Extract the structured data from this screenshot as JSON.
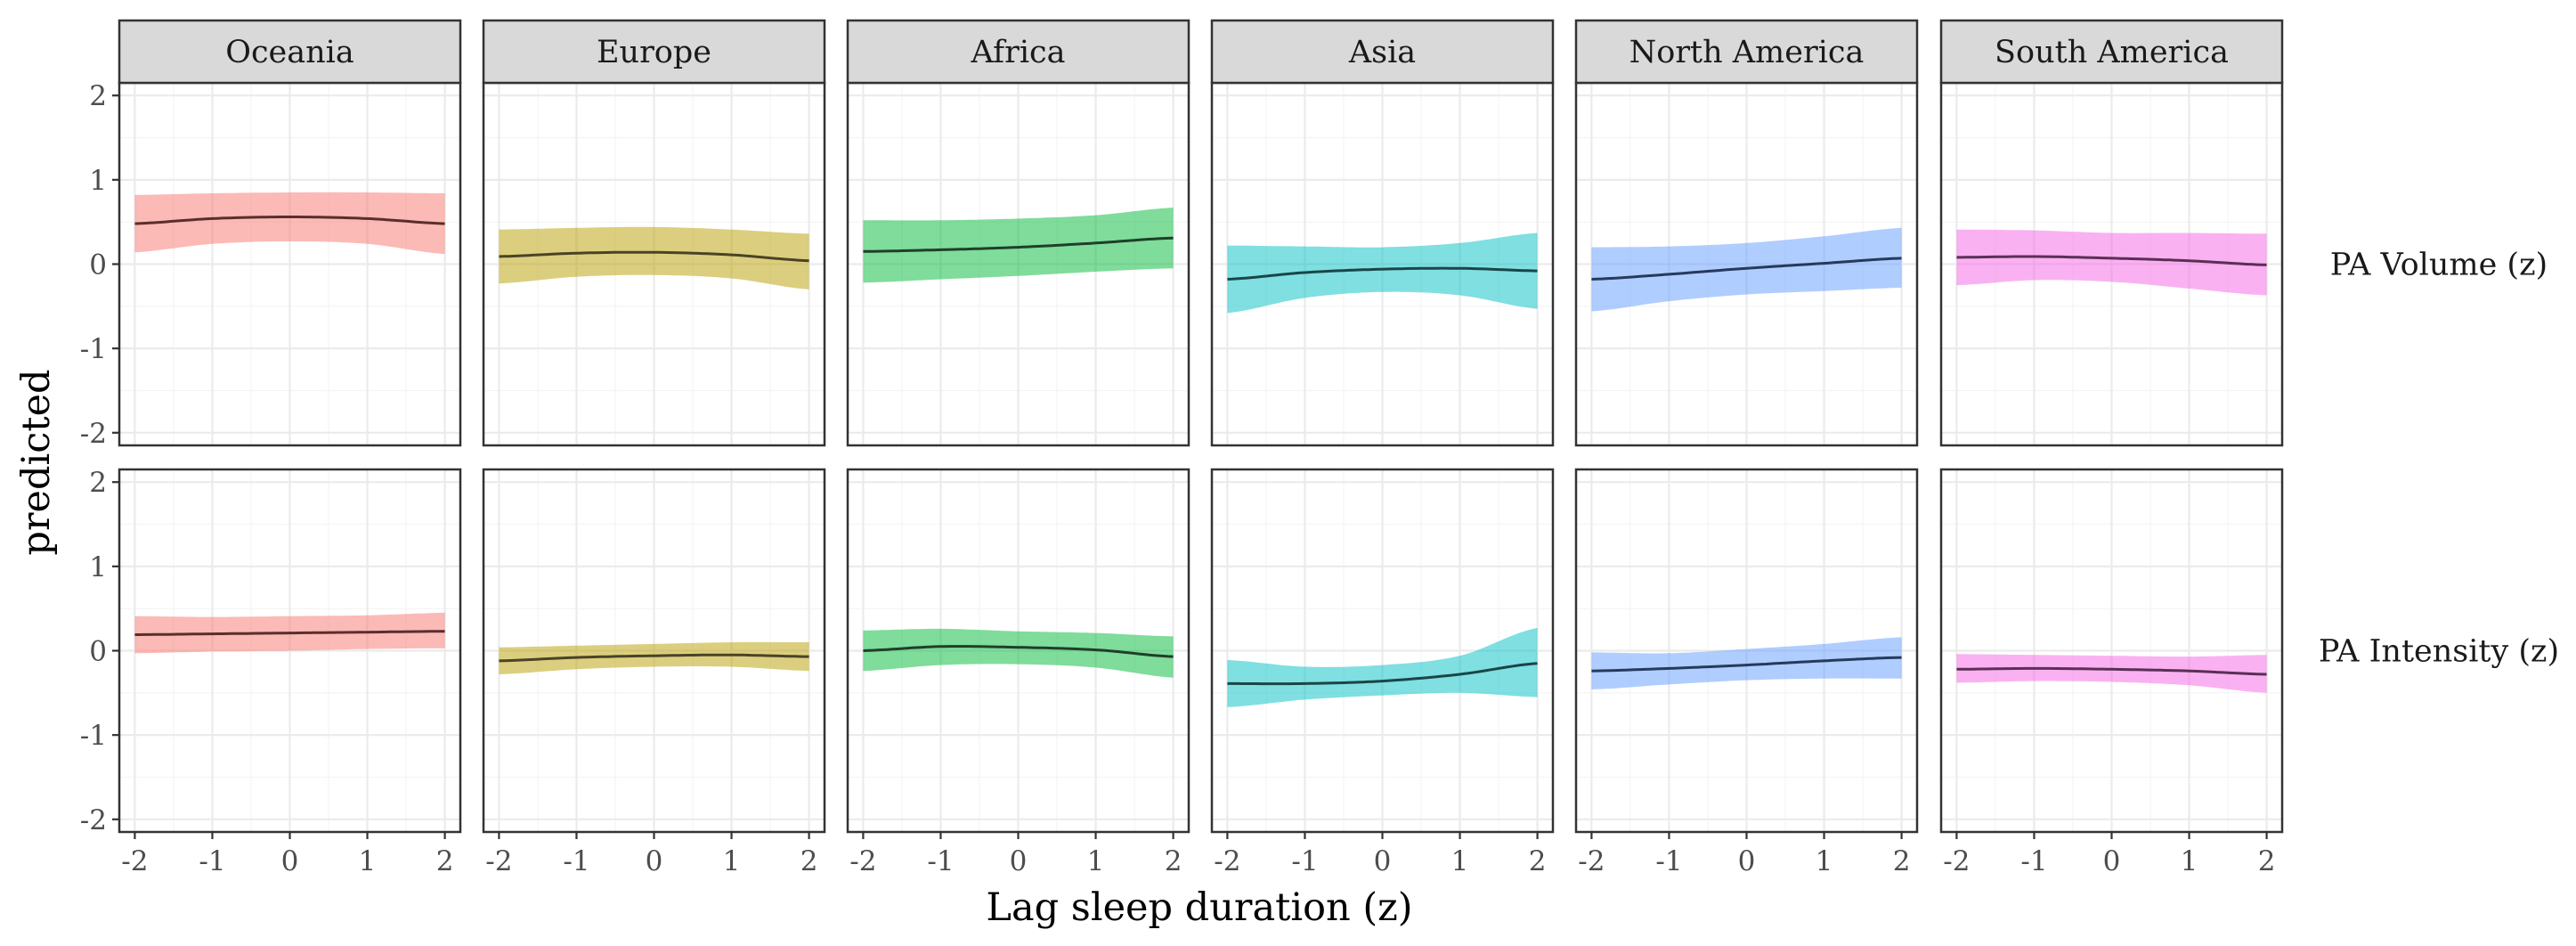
{
  "chart_data": {
    "type": "line",
    "xlabel": "Lag sleep duration (z)",
    "ylabel": "predicted",
    "xlim": [
      -2.2,
      2.2
    ],
    "ylim": [
      -2.15,
      2.15
    ],
    "x_ticks": [
      -2,
      -1,
      0,
      1,
      2
    ],
    "x_tick_labels": [
      "-2",
      "-1",
      "0",
      "1",
      "2"
    ],
    "y_ticks": [
      -2,
      -1,
      0,
      1,
      2
    ],
    "y_tick_labels": [
      "-2",
      "-1",
      "0",
      "1",
      "2"
    ],
    "grid": true,
    "columns": [
      "Oceania",
      "Europe",
      "Africa",
      "Asia",
      "North America",
      "South America"
    ],
    "rows": [
      "PA Volume (z)",
      "PA Intensity (z)"
    ],
    "colors": {
      "Oceania": "#F8766D",
      "Europe": "#B79F00",
      "Africa": "#00BA38",
      "Asia": "#00BFC4",
      "North America": "#619CFF",
      "South America": "#F564E3"
    },
    "line_colors": {
      "Oceania": "#5a2e2b",
      "Europe": "#4a4326",
      "Africa": "#1f3f28",
      "Asia": "#1a4547",
      "North America": "#253a5c",
      "South America": "#5a2f55"
    },
    "x": [
      -2,
      -1,
      0,
      1,
      2
    ],
    "panels": [
      {
        "row": "PA Volume (z)",
        "column": "Oceania",
        "fit": [
          0.48,
          0.54,
          0.56,
          0.54,
          0.48
        ],
        "lower": [
          0.14,
          0.24,
          0.27,
          0.24,
          0.12
        ],
        "upper": [
          0.82,
          0.84,
          0.85,
          0.85,
          0.84
        ]
      },
      {
        "row": "PA Volume (z)",
        "column": "Europe",
        "fit": [
          0.09,
          0.13,
          0.14,
          0.11,
          0.04
        ],
        "lower": [
          -0.23,
          -0.15,
          -0.13,
          -0.17,
          -0.3
        ],
        "upper": [
          0.41,
          0.43,
          0.44,
          0.41,
          0.36
        ]
      },
      {
        "row": "PA Volume (z)",
        "column": "Africa",
        "fit": [
          0.15,
          0.17,
          0.2,
          0.25,
          0.31
        ],
        "lower": [
          -0.22,
          -0.18,
          -0.14,
          -0.09,
          -0.05
        ],
        "upper": [
          0.52,
          0.52,
          0.54,
          0.58,
          0.67
        ]
      },
      {
        "row": "PA Volume (z)",
        "column": "Asia",
        "fit": [
          -0.18,
          -0.1,
          -0.06,
          -0.05,
          -0.08
        ],
        "lower": [
          -0.58,
          -0.4,
          -0.33,
          -0.37,
          -0.53
        ],
        "upper": [
          0.22,
          0.21,
          0.2,
          0.25,
          0.37
        ]
      },
      {
        "row": "PA Volume (z)",
        "column": "North America",
        "fit": [
          -0.18,
          -0.12,
          -0.05,
          0.01,
          0.07
        ],
        "lower": [
          -0.56,
          -0.44,
          -0.36,
          -0.32,
          -0.28
        ],
        "upper": [
          0.2,
          0.21,
          0.25,
          0.33,
          0.43
        ]
      },
      {
        "row": "PA Volume (z)",
        "column": "South America",
        "fit": [
          0.08,
          0.09,
          0.07,
          0.04,
          -0.01
        ],
        "lower": [
          -0.25,
          -0.19,
          -0.21,
          -0.29,
          -0.37
        ],
        "upper": [
          0.41,
          0.4,
          0.37,
          0.37,
          0.36
        ]
      },
      {
        "row": "PA Intensity (z)",
        "column": "Oceania",
        "fit": [
          0.19,
          0.2,
          0.21,
          0.22,
          0.23
        ],
        "lower": [
          -0.03,
          -0.01,
          0.0,
          0.02,
          0.03
        ],
        "upper": [
          0.41,
          0.4,
          0.41,
          0.42,
          0.45
        ]
      },
      {
        "row": "PA Intensity (z)",
        "column": "Europe",
        "fit": [
          -0.12,
          -0.08,
          -0.06,
          -0.05,
          -0.07
        ],
        "lower": [
          -0.28,
          -0.22,
          -0.19,
          -0.19,
          -0.24
        ],
        "upper": [
          0.04,
          0.06,
          0.08,
          0.1,
          0.1
        ]
      },
      {
        "row": "PA Intensity (z)",
        "column": "Africa",
        "fit": [
          0.0,
          0.05,
          0.04,
          0.01,
          -0.07
        ],
        "lower": [
          -0.24,
          -0.17,
          -0.16,
          -0.2,
          -0.32
        ],
        "upper": [
          0.24,
          0.26,
          0.23,
          0.21,
          0.17
        ]
      },
      {
        "row": "PA Intensity (z)",
        "column": "Asia",
        "fit": [
          -0.39,
          -0.39,
          -0.36,
          -0.28,
          -0.15
        ],
        "lower": [
          -0.67,
          -0.58,
          -0.53,
          -0.5,
          -0.55
        ],
        "upper": [
          -0.11,
          -0.19,
          -0.17,
          -0.06,
          0.27
        ]
      },
      {
        "row": "PA Intensity (z)",
        "column": "North America",
        "fit": [
          -0.24,
          -0.21,
          -0.17,
          -0.12,
          -0.08
        ],
        "lower": [
          -0.46,
          -0.4,
          -0.35,
          -0.33,
          -0.33
        ],
        "upper": [
          -0.02,
          -0.03,
          0.02,
          0.08,
          0.16
        ]
      },
      {
        "row": "PA Intensity (z)",
        "column": "South America",
        "fit": [
          -0.22,
          -0.21,
          -0.22,
          -0.24,
          -0.28
        ],
        "lower": [
          -0.38,
          -0.36,
          -0.37,
          -0.41,
          -0.5
        ],
        "upper": [
          -0.04,
          -0.05,
          -0.06,
          -0.07,
          -0.05
        ]
      }
    ]
  }
}
